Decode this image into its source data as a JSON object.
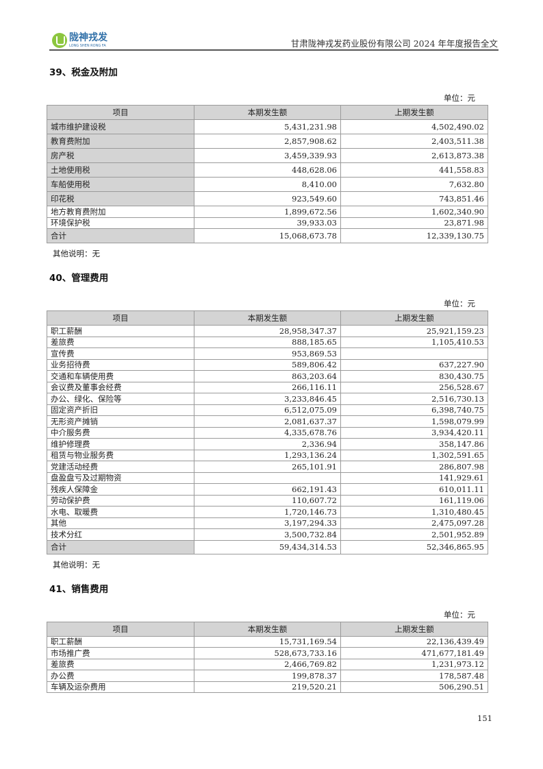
{
  "header": {
    "logo_cn": "陇神戎发",
    "logo_en": "LONG SHEN RONG FA",
    "document_title": "甘肃陇神戎发药业股份有限公司 2024 年年度报告全文"
  },
  "sections": [
    {
      "heading": "39、税金及附加",
      "unit": "单位：元",
      "columns": [
        "项目",
        "本期发生额",
        "上期发生额"
      ],
      "rows": [
        [
          "城市维护建设税",
          "5,431,231.98",
          "4,502,490.02"
        ],
        [
          "教育费附加",
          "2,857,908.62",
          "2,403,511.38"
        ],
        [
          "房产税",
          "3,459,339.93",
          "2,613,873.38"
        ],
        [
          "土地使用税",
          "448,628.06",
          "441,558.83"
        ],
        [
          "车船使用税",
          "8,410.00",
          "7,632.80"
        ],
        [
          "印花税",
          "923,549.60",
          "743,851.46"
        ],
        [
          "地方教育费附加",
          "1,899,672.56",
          "1,602,340.90"
        ],
        [
          "环境保护税",
          "39,933.03",
          "23,871.98"
        ],
        [
          "合计",
          "15,068,673.78",
          "12,339,130.75"
        ]
      ],
      "note": "其他说明：无"
    },
    {
      "heading": "40、管理费用",
      "unit": "单位：元",
      "columns": [
        "项目",
        "本期发生额",
        "上期发生额"
      ],
      "rows": [
        [
          "职工薪酬",
          "28,958,347.37",
          "25,921,159.23"
        ],
        [
          "差旅费",
          "888,185.65",
          "1,105,410.53"
        ],
        [
          "宣传费",
          "953,869.53",
          ""
        ],
        [
          "业务招待费",
          "589,806.42",
          "637,227.90"
        ],
        [
          "交通和车辆使用费",
          "863,203.64",
          "830,430.75"
        ],
        [
          "会议费及董事会经费",
          "266,116.11",
          "256,528.67"
        ],
        [
          "办公、绿化、保险等",
          "3,233,846.45",
          "2,516,730.13"
        ],
        [
          "固定资产折旧",
          "6,512,075.09",
          "6,398,740.75"
        ],
        [
          "无形资产摊销",
          "2,081,637.37",
          "1,598,079.99"
        ],
        [
          "中介服务费",
          "4,335,678.76",
          "3,934,420.11"
        ],
        [
          "维护修理费",
          "2,336.94",
          "358,147.86"
        ],
        [
          "租赁与物业服务费",
          "1,293,136.24",
          "1,302,591.65"
        ],
        [
          "党建活动经费",
          "265,101.91",
          "286,807.98"
        ],
        [
          "盘盈盘亏及过期物资",
          "",
          "141,929.61"
        ],
        [
          "残疾人保障金",
          "662,191.43",
          "610,011.11"
        ],
        [
          "劳动保护费",
          "110,607.72",
          "161,119.06"
        ],
        [
          "水电、取暖费",
          "1,720,146.73",
          "1,310,480.45"
        ],
        [
          "其他",
          "3,197,294.33",
          "2,475,097.28"
        ],
        [
          "技术分红",
          "3,500,732.84",
          "2,501,952.89"
        ],
        [
          "合计",
          "59,434,314.53",
          "52,346,865.95"
        ]
      ],
      "note": "其他说明：无"
    },
    {
      "heading": "41、销售费用",
      "unit": "单位：元",
      "columns": [
        "项目",
        "本期发生额",
        "上期发生额"
      ],
      "rows": [
        [
          "职工薪酬",
          "15,731,169.54",
          "22,136,439.49"
        ],
        [
          "市场推广费",
          "528,673,733.16",
          "471,677,181.49"
        ],
        [
          "差旅费",
          "2,466,769.82",
          "1,231,973.12"
        ],
        [
          "办公费",
          "199,878.37",
          "178,587.48"
        ],
        [
          "车辆及运杂费用",
          "219,520.21",
          "506,290.51"
        ]
      ]
    }
  ],
  "footer": {
    "page_number": "151"
  }
}
